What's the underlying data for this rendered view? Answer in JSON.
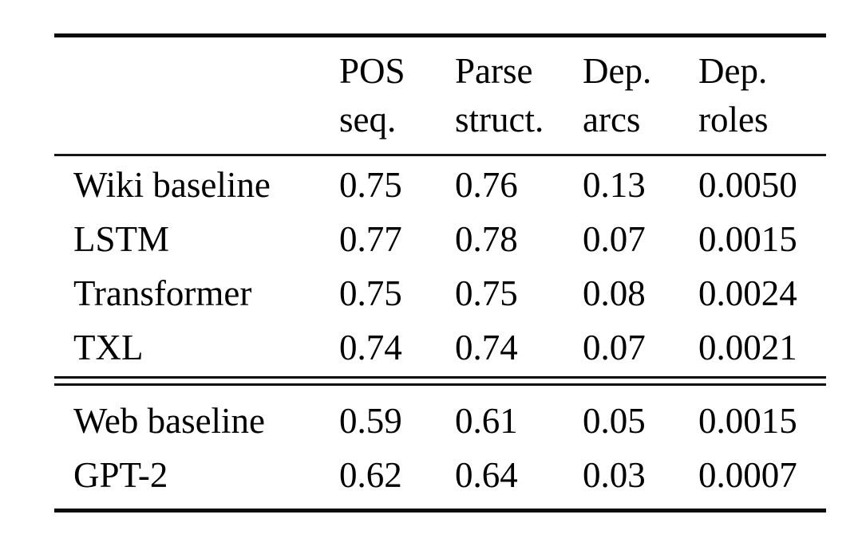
{
  "table": {
    "background": "#ffffff",
    "text_color": "#000000",
    "rule_color": "#0b0b0b",
    "header": [
      {
        "line1": "POS",
        "line2": "seq."
      },
      {
        "line1": "Parse",
        "line2": "struct."
      },
      {
        "line1": "Dep.",
        "line2": "arcs"
      },
      {
        "line1": "Dep.",
        "line2": "roles"
      }
    ],
    "sections": [
      {
        "rows": [
          {
            "label": "Wiki baseline",
            "values": [
              "0.75",
              "0.76",
              "0.13",
              "0.0050"
            ]
          },
          {
            "label": "LSTM",
            "values": [
              "0.77",
              "0.78",
              "0.07",
              "0.0015"
            ]
          },
          {
            "label": "Transformer",
            "values": [
              "0.75",
              "0.75",
              "0.08",
              "0.0024"
            ]
          },
          {
            "label": "TXL",
            "values": [
              "0.74",
              "0.74",
              "0.07",
              "0.0021"
            ]
          }
        ]
      },
      {
        "rows": [
          {
            "label": "Web baseline",
            "values": [
              "0.59",
              "0.61",
              "0.05",
              "0.0015"
            ]
          },
          {
            "label": "GPT-2",
            "values": [
              "0.62",
              "0.64",
              "0.03",
              "0.0007"
            ]
          }
        ]
      }
    ]
  },
  "chart_data": {
    "type": "table",
    "columns": [
      "",
      "POS seq.",
      "Parse struct.",
      "Dep. arcs",
      "Dep. roles"
    ],
    "rows": [
      [
        "Wiki baseline",
        0.75,
        0.76,
        0.13,
        0.005
      ],
      [
        "LSTM",
        0.77,
        0.78,
        0.07,
        0.0015
      ],
      [
        "Transformer",
        0.75,
        0.75,
        0.08,
        0.0024
      ],
      [
        "TXL",
        0.74,
        0.74,
        0.07,
        0.0021
      ],
      [
        "Web baseline",
        0.59,
        0.61,
        0.05,
        0.0015
      ],
      [
        "GPT-2",
        0.62,
        0.64,
        0.03,
        0.0007
      ]
    ],
    "section_break_after_row": 3
  }
}
